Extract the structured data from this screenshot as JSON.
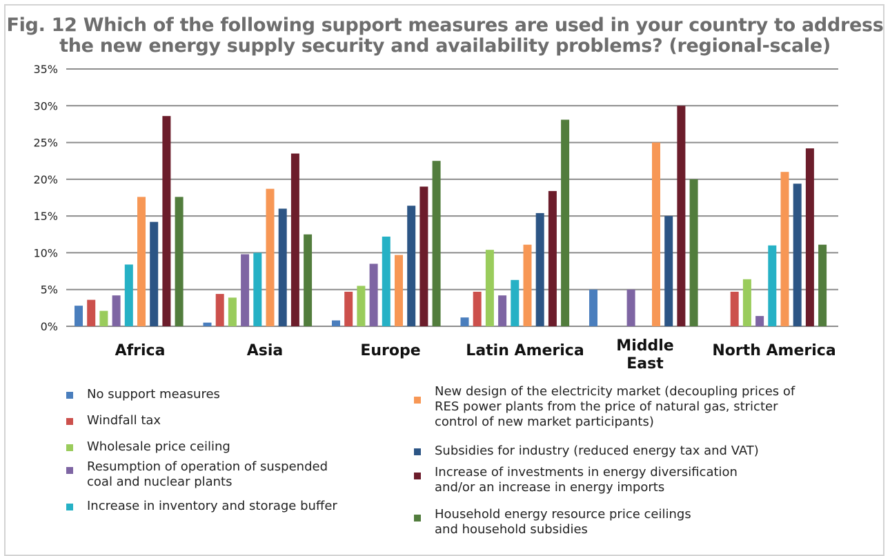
{
  "chart_data": {
    "type": "bar",
    "title_lines": [
      "Fig. 12 Which of the following support measures are used in your country to address",
      "the new energy supply security and availability problems? (regional-scale)"
    ],
    "categories": [
      "Africa",
      "Asia",
      "Europe",
      "Latin America",
      "Middle\nEast",
      "North America"
    ],
    "y_ticks": [
      "0%",
      "5%",
      "10%",
      "15%",
      "20%",
      "25%",
      "30%",
      "35%"
    ],
    "ylim": [
      0,
      35
    ],
    "grid": true,
    "legend_position": "bottom",
    "series": [
      {
        "name": "No support measures",
        "color": "#4a7ebd",
        "values": [
          2.8,
          0.5,
          0.8,
          1.2,
          5.0,
          0
        ]
      },
      {
        "name": "Windfall tax",
        "color": "#cc504c",
        "values": [
          3.6,
          4.4,
          4.7,
          4.7,
          0,
          4.7
        ]
      },
      {
        "name": "Wholesale price ceiling",
        "color": "#9acc5c",
        "values": [
          2.1,
          3.9,
          5.5,
          10.4,
          0,
          6.4
        ]
      },
      {
        "name": "Resumption of operation of suspended coal and nuclear plants",
        "color": "#7e65a3",
        "values": [
          4.2,
          9.8,
          8.5,
          4.2,
          5.0,
          1.4
        ]
      },
      {
        "name": "Increase in inventory and storage buffer",
        "color": "#26b1c5",
        "values": [
          8.4,
          10.0,
          12.2,
          6.3,
          0,
          11.0
        ]
      },
      {
        "name": "New design of the electricity market (decoupling prices of RES power plants from the price of natural gas, stricter control of new market participants)",
        "color": "#f79755",
        "values": [
          17.6,
          18.7,
          9.7,
          11.1,
          25.0,
          21.0
        ]
      },
      {
        "name": "Subsidies for industry (reduced energy tax and VAT)",
        "color": "#2c5585",
        "values": [
          14.2,
          16.0,
          16.4,
          15.4,
          15.0,
          19.4
        ]
      },
      {
        "name": "Increase of investments in energy diversification and/or an increase in energy imports",
        "color": "#6c1d2b",
        "values": [
          28.6,
          23.5,
          19.0,
          18.4,
          30.0,
          24.2
        ]
      },
      {
        "name": "Household energy resource price ceilings and household subsidies",
        "color": "#527d3d",
        "values": [
          17.6,
          12.5,
          22.5,
          28.1,
          20.0,
          11.1
        ]
      }
    ],
    "legend": [
      {
        "lines": [
          "No support measures"
        ]
      },
      {
        "lines": [
          "Windfall tax"
        ]
      },
      {
        "lines": [
          "Wholesale price ceiling"
        ]
      },
      {
        "lines": [
          "Resumption of operation of suspended",
          "coal and nuclear plants"
        ]
      },
      {
        "lines": [
          "Increase in inventory and storage buffer"
        ]
      },
      {
        "lines": [
          "New design of the electricity market (decoupling prices of",
          "RES power plants from the price of natural gas, stricter",
          "control of new market participants)"
        ]
      },
      {
        "lines": [
          "Subsidies for industry (reduced energy tax and VAT)"
        ]
      },
      {
        "lines": [
          "Increase of investments in energy diversification",
          "and/or an increase in energy imports"
        ]
      },
      {
        "lines": [
          "Household energy resource price ceilings",
          "and household subsidies"
        ]
      }
    ]
  }
}
